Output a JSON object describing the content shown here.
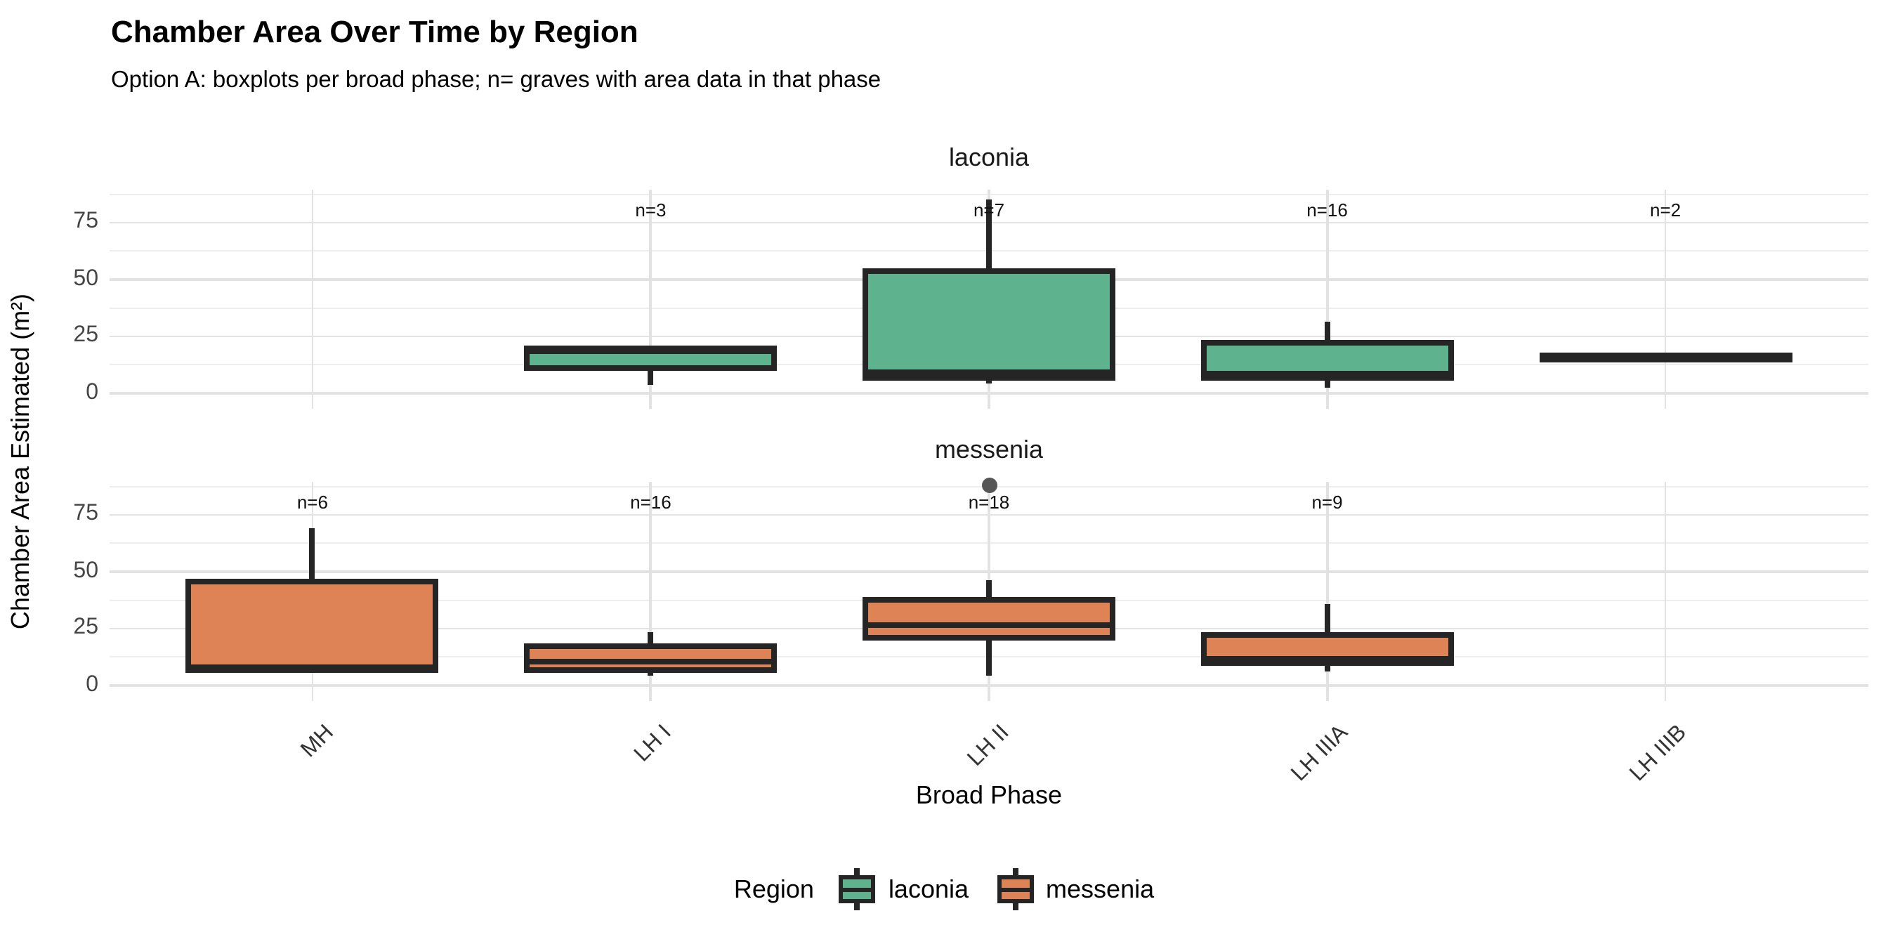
{
  "title": "Chamber Area Over Time by Region",
  "subtitle": "Option A: boxplots per broad phase; n= graves with area data in that phase",
  "colors": {
    "laconia_fill": "#5FB28E",
    "messenia_fill": "#DE8356",
    "box_border": "#252525",
    "outlier": "#565656",
    "grid_major": "#e2e2e2",
    "grid_minor": "#ededed"
  },
  "chart_data": {
    "type": "boxplot",
    "title": "Chamber Area Over Time by Region",
    "subtitle": "Option A: boxplots per broad phase; n= graves with area data in that phase",
    "xlabel": "Broad Phase",
    "ylabel": "Chamber Area Estimated (m²)",
    "categories": [
      "MH",
      "LH I",
      "LH II",
      "LH IIIA",
      "LH IIIB"
    ],
    "y_ticks": [
      0,
      25,
      50,
      75
    ],
    "y_minor": [
      12.5,
      37.5,
      62.5,
      87.5
    ],
    "ylim": [
      -6.5,
      89.5
    ],
    "grid": true,
    "legend_position": "bottom",
    "legend": {
      "title": "Region",
      "entries": [
        {
          "label": "laconia",
          "color": "#5FB28E"
        },
        {
          "label": "messenia",
          "color": "#DE8356"
        }
      ]
    },
    "facets": [
      {
        "label": "laconia",
        "fill": "#5FB28E",
        "boxes": [
          {
            "category": "LH I",
            "n_label": "n=3",
            "low": 3.5,
            "q1": 11,
            "median": 18.5,
            "q3": 19.5,
            "high": 19.5,
            "outliers": []
          },
          {
            "category": "LH II",
            "n_label": "n=7",
            "low": 4,
            "q1": 7,
            "median": 9,
            "q3": 53.5,
            "high": 85,
            "outliers": []
          },
          {
            "category": "LH IIIA",
            "n_label": "n=16",
            "low": 2.5,
            "q1": 7,
            "median": 8.5,
            "q3": 22.5,
            "high": 31.5,
            "outliers": []
          },
          {
            "category": "LH IIIB",
            "n_label": "n=2",
            "low": 15.5,
            "q1": 15.5,
            "median": 15.5,
            "q3": 15.5,
            "high": 15.5,
            "outliers": []
          }
        ]
      },
      {
        "label": "messenia",
        "fill": "#DE8356",
        "boxes": [
          {
            "category": "MH",
            "n_label": "n=6",
            "low": 6.5,
            "q1": 6.5,
            "median": 8,
            "q3": 45.5,
            "high": 69,
            "outliers": []
          },
          {
            "category": "LH I",
            "n_label": "n=16",
            "low": 4.5,
            "q1": 7,
            "median": 10.5,
            "q3": 17.5,
            "high": 23.5,
            "outliers": []
          },
          {
            "category": "LH II",
            "n_label": "n=18",
            "low": 4.5,
            "q1": 21,
            "median": 26.5,
            "q3": 37.5,
            "high": 46.5,
            "outliers": [
              88
            ]
          },
          {
            "category": "LH IIIA",
            "n_label": "n=9",
            "low": 6,
            "q1": 10,
            "median": 11.5,
            "q3": 22.5,
            "high": 35.5,
            "outliers": []
          }
        ]
      }
    ],
    "n_label_y": 80
  }
}
